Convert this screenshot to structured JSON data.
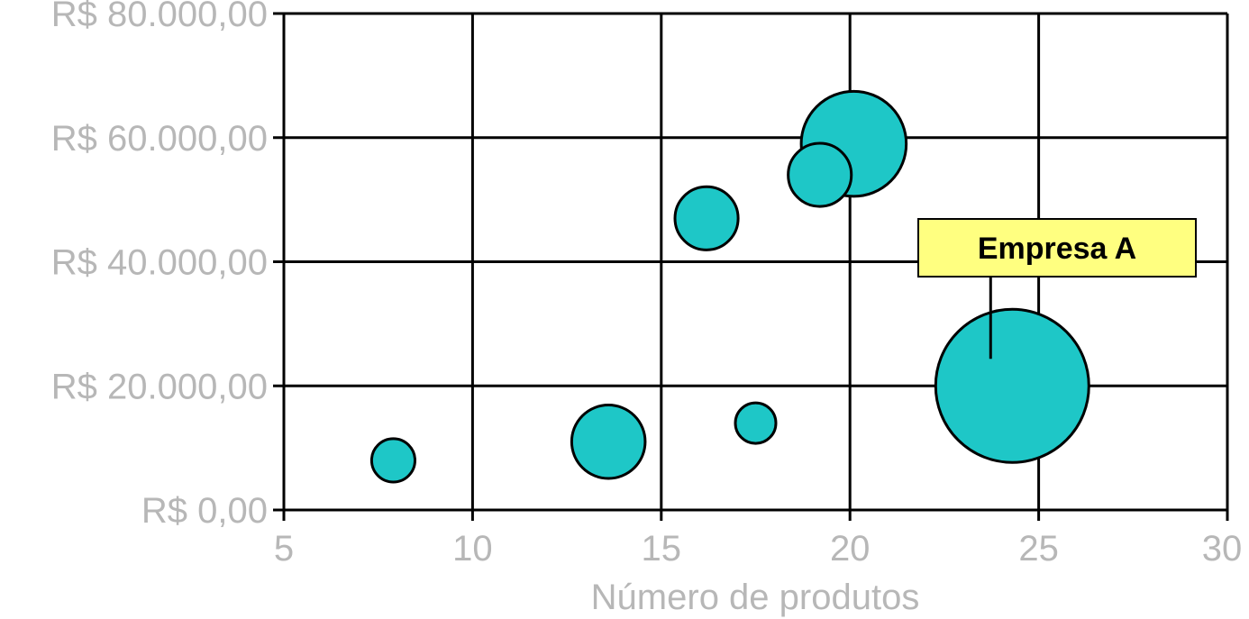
{
  "chart_data": {
    "type": "scatter",
    "title": "",
    "xlabel": "Número de produtos",
    "ylabel": "",
    "xlim": [
      5,
      30
    ],
    "ylim": [
      0,
      80000
    ],
    "x_ticks": [
      5,
      10,
      15,
      20,
      25,
      30
    ],
    "x_tick_labels": [
      "5",
      "10",
      "15",
      "20",
      "25",
      "30"
    ],
    "y_ticks": [
      0,
      20000,
      40000,
      60000,
      80000
    ],
    "y_tick_labels": [
      "R$ 0,00",
      "R$ 20.000,00",
      "R$ 40.000,00",
      "R$ 60.000,00",
      "R$ 80.000,00"
    ],
    "grid": true,
    "marker_color": "#1ec7c7",
    "marker_edge_color": "#000000",
    "points": [
      {
        "x": 7.9,
        "y": 8000,
        "size": 8
      },
      {
        "x": 13.6,
        "y": 11000,
        "size": 23
      },
      {
        "x": 17.5,
        "y": 14000,
        "size": 7
      },
      {
        "x": 16.2,
        "y": 47000,
        "size": 17
      },
      {
        "x": 19.2,
        "y": 54000,
        "size": 17
      },
      {
        "x": 20.1,
        "y": 59000,
        "size": 47
      },
      {
        "x": 24.3,
        "y": 20000,
        "size": 100
      }
    ],
    "annotation": {
      "text": "Empresa A",
      "target_x": 24.3,
      "target_y": 20000,
      "bg_color": "#ffff80"
    }
  }
}
